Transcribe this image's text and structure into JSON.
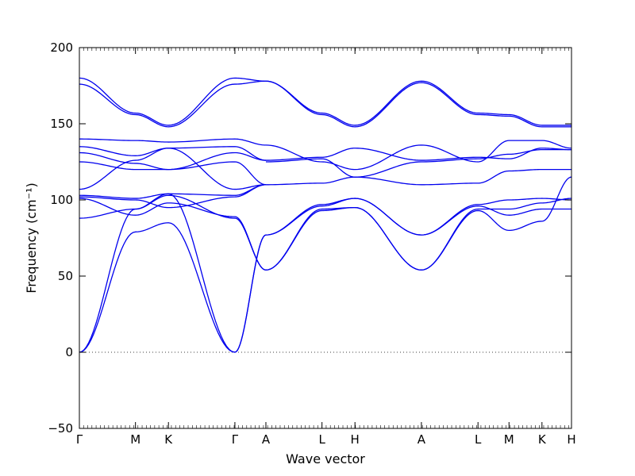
{
  "chart_data": {
    "type": "line",
    "title": "",
    "xlabel": "Wave vector",
    "ylabel": "Frequency (cm⁻¹)",
    "ylim": [
      -50,
      200
    ],
    "yticks": [
      -50,
      0,
      50,
      100,
      150,
      200
    ],
    "zero_line": true,
    "grid": false,
    "legend": "none",
    "line_color": "#0000ee",
    "kpath": [
      {
        "label": "Γ",
        "pos": 0.0
      },
      {
        "label": "M",
        "pos": 0.114
      },
      {
        "label": "K",
        "pos": 0.181
      },
      {
        "label": "Γ",
        "pos": 0.316
      },
      {
        "label": "A",
        "pos": 0.379
      },
      {
        "label": "L",
        "pos": 0.493
      },
      {
        "label": "H",
        "pos": 0.56
      },
      {
        "label": "A",
        "pos": 0.695
      },
      {
        "label": "L",
        "pos": 0.81
      },
      {
        "label": "M",
        "pos": 0.873
      },
      {
        "label": "K",
        "pos": 0.94
      },
      {
        "label": "H",
        "pos": 1.0
      }
    ],
    "series": [
      {
        "x": [
          0,
          0.114,
          0.181,
          0.316,
          0.379
        ],
        "y": [
          180,
          157,
          149,
          180,
          178
        ]
      },
      {
        "x": [
          0,
          0.114,
          0.181,
          0.316,
          0.379
        ],
        "y": [
          176,
          156,
          148,
          176,
          178
        ]
      },
      {
        "x": [
          0.379,
          0.493,
          0.56,
          0.695,
          0.81,
          0.873,
          0.94,
          1.0
        ],
        "y": [
          178,
          157,
          149,
          178,
          157,
          156,
          149,
          149
        ]
      },
      {
        "x": [
          0.379,
          0.493,
          0.56,
          0.695,
          0.81,
          0.873,
          0.94,
          1.0
        ],
        "y": [
          178,
          156,
          148,
          177,
          156,
          155,
          148,
          148
        ]
      },
      {
        "x": [
          0,
          0.114,
          0.181,
          0.316,
          0.379
        ],
        "y": [
          140,
          139,
          138,
          140,
          136
        ]
      },
      {
        "x": [
          0,
          0.114,
          0.181,
          0.316,
          0.379
        ],
        "y": [
          135,
          129,
          134,
          135,
          126
        ]
      },
      {
        "x": [
          0,
          0.114,
          0.181,
          0.316,
          0.379
        ],
        "y": [
          131,
          124,
          120,
          131,
          126
        ]
      },
      {
        "x": [
          0,
          0.114,
          0.181,
          0.316,
          0.379
        ],
        "y": [
          125,
          120,
          120,
          125,
          110
        ]
      },
      {
        "x": [
          0,
          0.114,
          0.181,
          0.316,
          0.379
        ],
        "y": [
          107,
          126,
          134,
          107,
          110
        ]
      },
      {
        "x": [
          0.379,
          0.493,
          0.56,
          0.695,
          0.81,
          0.873,
          0.94,
          1.0
        ],
        "y": [
          136,
          125,
          120,
          136,
          125,
          139,
          139,
          134
        ]
      },
      {
        "x": [
          0.379,
          0.493,
          0.56,
          0.695,
          0.81,
          0.873,
          0.94,
          1.0
        ],
        "y": [
          126,
          128,
          134,
          126,
          128,
          127,
          134,
          133
        ]
      },
      {
        "x": [
          0.379,
          0.493,
          0.56,
          0.695,
          0.81,
          0.873,
          0.94,
          1.0
        ],
        "y": [
          125,
          127,
          115,
          125,
          127,
          130,
          133,
          133
        ]
      },
      {
        "x": [
          0.379,
          0.493,
          0.56,
          0.695,
          0.81,
          0.873,
          0.94,
          1.0
        ],
        "y": [
          110,
          111,
          115,
          110,
          111,
          119,
          120,
          120
        ]
      },
      {
        "x": [
          0,
          0.114,
          0.181,
          0.316,
          0.379
        ],
        "y": [
          103,
          101,
          104,
          103,
          110
        ]
      },
      {
        "x": [
          0,
          0.114,
          0.181,
          0.316,
          0.379
        ],
        "y": [
          102,
          100,
          95,
          102,
          110
        ]
      },
      {
        "x": [
          0,
          0.114,
          0.181,
          0.316,
          0.379
        ],
        "y": [
          101,
          90,
          98,
          89,
          54
        ]
      },
      {
        "x": [
          0,
          0.114,
          0.181,
          0.316,
          0.379
        ],
        "y": [
          88,
          94,
          103,
          88,
          54
        ]
      },
      {
        "x": [
          0,
          0.114,
          0.181,
          0.316,
          0.379
        ],
        "y": [
          0,
          94,
          104,
          0,
          77
        ]
      },
      {
        "x": [
          0,
          0.114,
          0.181,
          0.316,
          0.379
        ],
        "y": [
          0,
          79,
          85,
          0,
          77
        ]
      },
      {
        "x": [
          0.379,
          0.493,
          0.56,
          0.695,
          0.81,
          0.873,
          0.94,
          1.0
        ],
        "y": [
          77,
          97,
          101,
          77,
          97,
          100,
          101,
          100
        ]
      },
      {
        "x": [
          0.379,
          0.493,
          0.56,
          0.695,
          0.81,
          0.873,
          0.94,
          1.0
        ],
        "y": [
          54,
          94,
          95,
          54,
          94,
          94,
          98,
          101
        ]
      },
      {
        "x": [
          0.379,
          0.493,
          0.56,
          0.695,
          0.81,
          0.873,
          0.94,
          1.0
        ],
        "y": [
          54,
          93,
          95,
          54,
          93,
          80,
          86,
          115
        ]
      },
      {
        "x": [
          0.379,
          0.493,
          0.56,
          0.695,
          0.81,
          0.873,
          0.94,
          1.0
        ],
        "y": [
          77,
          96,
          101,
          77,
          96,
          90,
          94,
          94
        ]
      }
    ]
  }
}
